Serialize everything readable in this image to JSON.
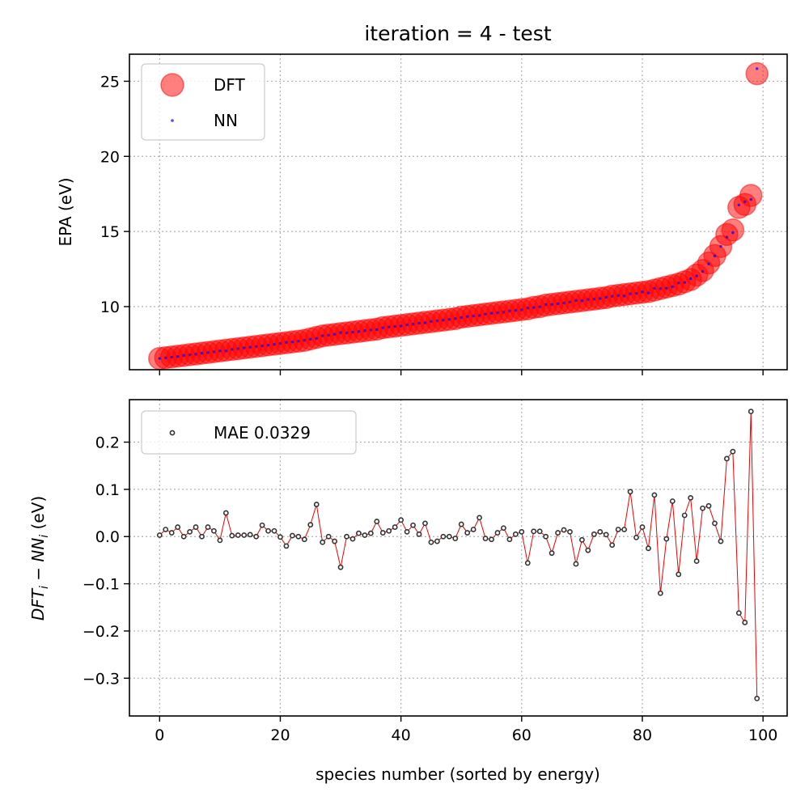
{
  "chart_data": [
    {
      "type": "scatter",
      "title": "iteration = 4 - test",
      "xlabel": "",
      "ylabel": "EPA (eV)",
      "xlim": [
        -5,
        104
      ],
      "ylim": [
        5.8,
        26.8
      ],
      "xticks": [
        0,
        20,
        40,
        60,
        80,
        100
      ],
      "yticks": [
        10,
        15,
        20,
        25
      ],
      "ytick_labels": [
        "10",
        "15",
        "20",
        "25"
      ],
      "grid": true,
      "legend_position": "top-left",
      "series": [
        {
          "name": "DFT",
          "color": "#ff0000",
          "marker": "large-circle"
        },
        {
          "name": "NN",
          "color": "#0000ff",
          "marker": "small-dot"
        }
      ],
      "x": [
        0,
        1,
        2,
        3,
        4,
        5,
        6,
        7,
        8,
        9,
        10,
        11,
        12,
        13,
        14,
        15,
        16,
        17,
        18,
        19,
        20,
        21,
        22,
        23,
        24,
        25,
        26,
        27,
        28,
        29,
        30,
        31,
        32,
        33,
        34,
        35,
        36,
        37,
        38,
        39,
        40,
        41,
        42,
        43,
        44,
        45,
        46,
        47,
        48,
        49,
        50,
        51,
        52,
        53,
        54,
        55,
        56,
        57,
        58,
        59,
        60,
        61,
        62,
        63,
        64,
        65,
        66,
        67,
        68,
        69,
        70,
        71,
        72,
        73,
        74,
        75,
        76,
        77,
        78,
        79,
        80,
        81,
        82,
        83,
        84,
        85,
        86,
        87,
        88,
        89,
        90,
        91,
        92,
        93,
        94,
        95,
        96,
        97,
        98,
        99
      ],
      "dft_values": [
        6.55,
        6.6,
        6.65,
        6.7,
        6.75,
        6.8,
        6.85,
        6.9,
        6.95,
        7.0,
        7.05,
        7.1,
        7.15,
        7.2,
        7.25,
        7.3,
        7.35,
        7.4,
        7.45,
        7.5,
        7.55,
        7.6,
        7.65,
        7.7,
        7.75,
        7.85,
        7.95,
        8.05,
        8.1,
        8.15,
        8.2,
        8.25,
        8.3,
        8.35,
        8.4,
        8.45,
        8.5,
        8.6,
        8.65,
        8.7,
        8.75,
        8.8,
        8.85,
        8.9,
        8.95,
        9.0,
        9.05,
        9.1,
        9.15,
        9.2,
        9.3,
        9.35,
        9.4,
        9.45,
        9.5,
        9.55,
        9.6,
        9.65,
        9.7,
        9.75,
        9.8,
        9.85,
        9.95,
        10.0,
        10.1,
        10.15,
        10.2,
        10.25,
        10.3,
        10.35,
        10.4,
        10.45,
        10.5,
        10.55,
        10.6,
        10.7,
        10.75,
        10.8,
        10.85,
        10.9,
        10.95,
        11.0,
        11.1,
        11.2,
        11.3,
        11.4,
        11.5,
        11.65,
        11.8,
        12.1,
        12.4,
        12.9,
        13.4,
        14.0,
        14.8,
        15.1,
        16.6,
        16.8,
        17.4,
        25.5
      ],
      "nn_values": [
        6.55,
        6.59,
        6.64,
        6.68,
        6.75,
        6.79,
        6.83,
        6.9,
        6.94,
        6.99,
        7.06,
        7.05,
        7.15,
        7.2,
        7.25,
        7.3,
        7.35,
        7.38,
        7.44,
        7.49,
        7.55,
        7.62,
        7.65,
        7.7,
        7.76,
        7.83,
        7.88,
        8.06,
        8.1,
        8.16,
        8.27,
        8.25,
        8.3,
        8.34,
        8.4,
        8.45,
        8.47,
        8.59,
        8.64,
        8.68,
        8.71,
        8.79,
        8.83,
        8.9,
        8.92,
        9.01,
        9.06,
        9.1,
        9.15,
        9.2,
        9.27,
        9.34,
        9.38,
        9.41,
        9.5,
        9.56,
        9.59,
        9.63,
        9.71,
        9.75,
        9.79,
        9.91,
        9.94,
        9.99,
        10.14,
        10.14,
        10.19,
        10.24,
        10.31,
        10.41,
        10.39,
        10.48,
        10.5,
        10.54,
        10.62,
        10.69,
        10.74,
        10.71,
        10.85,
        10.88,
        10.98,
        10.91,
        11.22,
        11.2,
        11.22,
        11.32,
        11.58,
        11.61,
        11.86,
        12.04,
        12.34,
        12.84,
        13.37,
        14.01,
        14.63,
        14.92,
        16.76,
        16.98,
        17.13,
        25.84
      ]
    },
    {
      "type": "line",
      "title": "",
      "xlabel": "species number (sorted by energy)",
      "ylabel_main": "DFT",
      "ylabel_sub1": "i",
      "ylabel_mid": " − NN",
      "ylabel_sub2": "i",
      "ylabel_unit": " (eV)",
      "xlim": [
        -5,
        104
      ],
      "ylim": [
        -0.38,
        0.29
      ],
      "xticks": [
        0,
        20,
        40,
        60,
        80,
        100
      ],
      "xtick_labels": [
        "0",
        "20",
        "40",
        "60",
        "80",
        "100"
      ],
      "yticks": [
        -0.3,
        -0.2,
        -0.1,
        0.0,
        0.1,
        0.2
      ],
      "ytick_labels": [
        "−0.3",
        "−0.2",
        "−0.1",
        "0.0",
        "0.1",
        "0.2"
      ],
      "grid": true,
      "legend_position": "top-left",
      "series": [
        {
          "name": "MAE 0.0329",
          "color": "#333333",
          "line_color": "#ee0000",
          "marker": "open-circle"
        }
      ],
      "x": [
        0,
        1,
        2,
        3,
        4,
        5,
        6,
        7,
        8,
        9,
        10,
        11,
        12,
        13,
        14,
        15,
        16,
        17,
        18,
        19,
        20,
        21,
        22,
        23,
        24,
        25,
        26,
        27,
        28,
        29,
        30,
        31,
        32,
        33,
        34,
        35,
        36,
        37,
        38,
        39,
        40,
        41,
        42,
        43,
        44,
        45,
        46,
        47,
        48,
        49,
        50,
        51,
        52,
        53,
        54,
        55,
        56,
        57,
        58,
        59,
        60,
        61,
        62,
        63,
        64,
        65,
        66,
        67,
        68,
        69,
        70,
        71,
        72,
        73,
        74,
        75,
        76,
        77,
        78,
        79,
        80,
        81,
        82,
        83,
        84,
        85,
        86,
        87,
        88,
        89,
        90,
        91,
        92,
        93,
        94,
        95,
        96,
        97,
        98,
        99
      ],
      "values": [
        0.003,
        0.015,
        0.008,
        0.02,
        0.0,
        0.01,
        0.02,
        0.0,
        0.02,
        0.012,
        -0.008,
        0.05,
        0.002,
        0.003,
        0.003,
        0.004,
        0.0,
        0.024,
        0.012,
        0.012,
        -0.001,
        -0.02,
        0.002,
        0.0,
        -0.006,
        0.025,
        0.068,
        -0.012,
        0.0,
        -0.01,
        -0.065,
        0.0,
        -0.005,
        0.007,
        0.003,
        0.007,
        0.032,
        0.008,
        0.012,
        0.02,
        0.035,
        0.01,
        0.024,
        0.005,
        0.028,
        -0.012,
        -0.01,
        0.0,
        0.0,
        -0.004,
        0.026,
        0.008,
        0.015,
        0.04,
        -0.004,
        -0.006,
        0.008,
        0.018,
        -0.006,
        0.005,
        0.01,
        -0.056,
        0.011,
        0.011,
        0.0,
        -0.035,
        0.008,
        0.014,
        0.01,
        -0.058,
        -0.007,
        -0.029,
        0.005,
        0.01,
        0.004,
        -0.018,
        0.015,
        0.015,
        0.095,
        -0.002,
        0.02,
        -0.025,
        0.088,
        -0.12,
        -0.005,
        0.075,
        -0.08,
        0.045,
        0.082,
        -0.052,
        0.06,
        0.065,
        0.028,
        -0.01,
        0.165,
        0.18,
        -0.162,
        -0.182,
        0.265,
        -0.343
      ]
    }
  ]
}
